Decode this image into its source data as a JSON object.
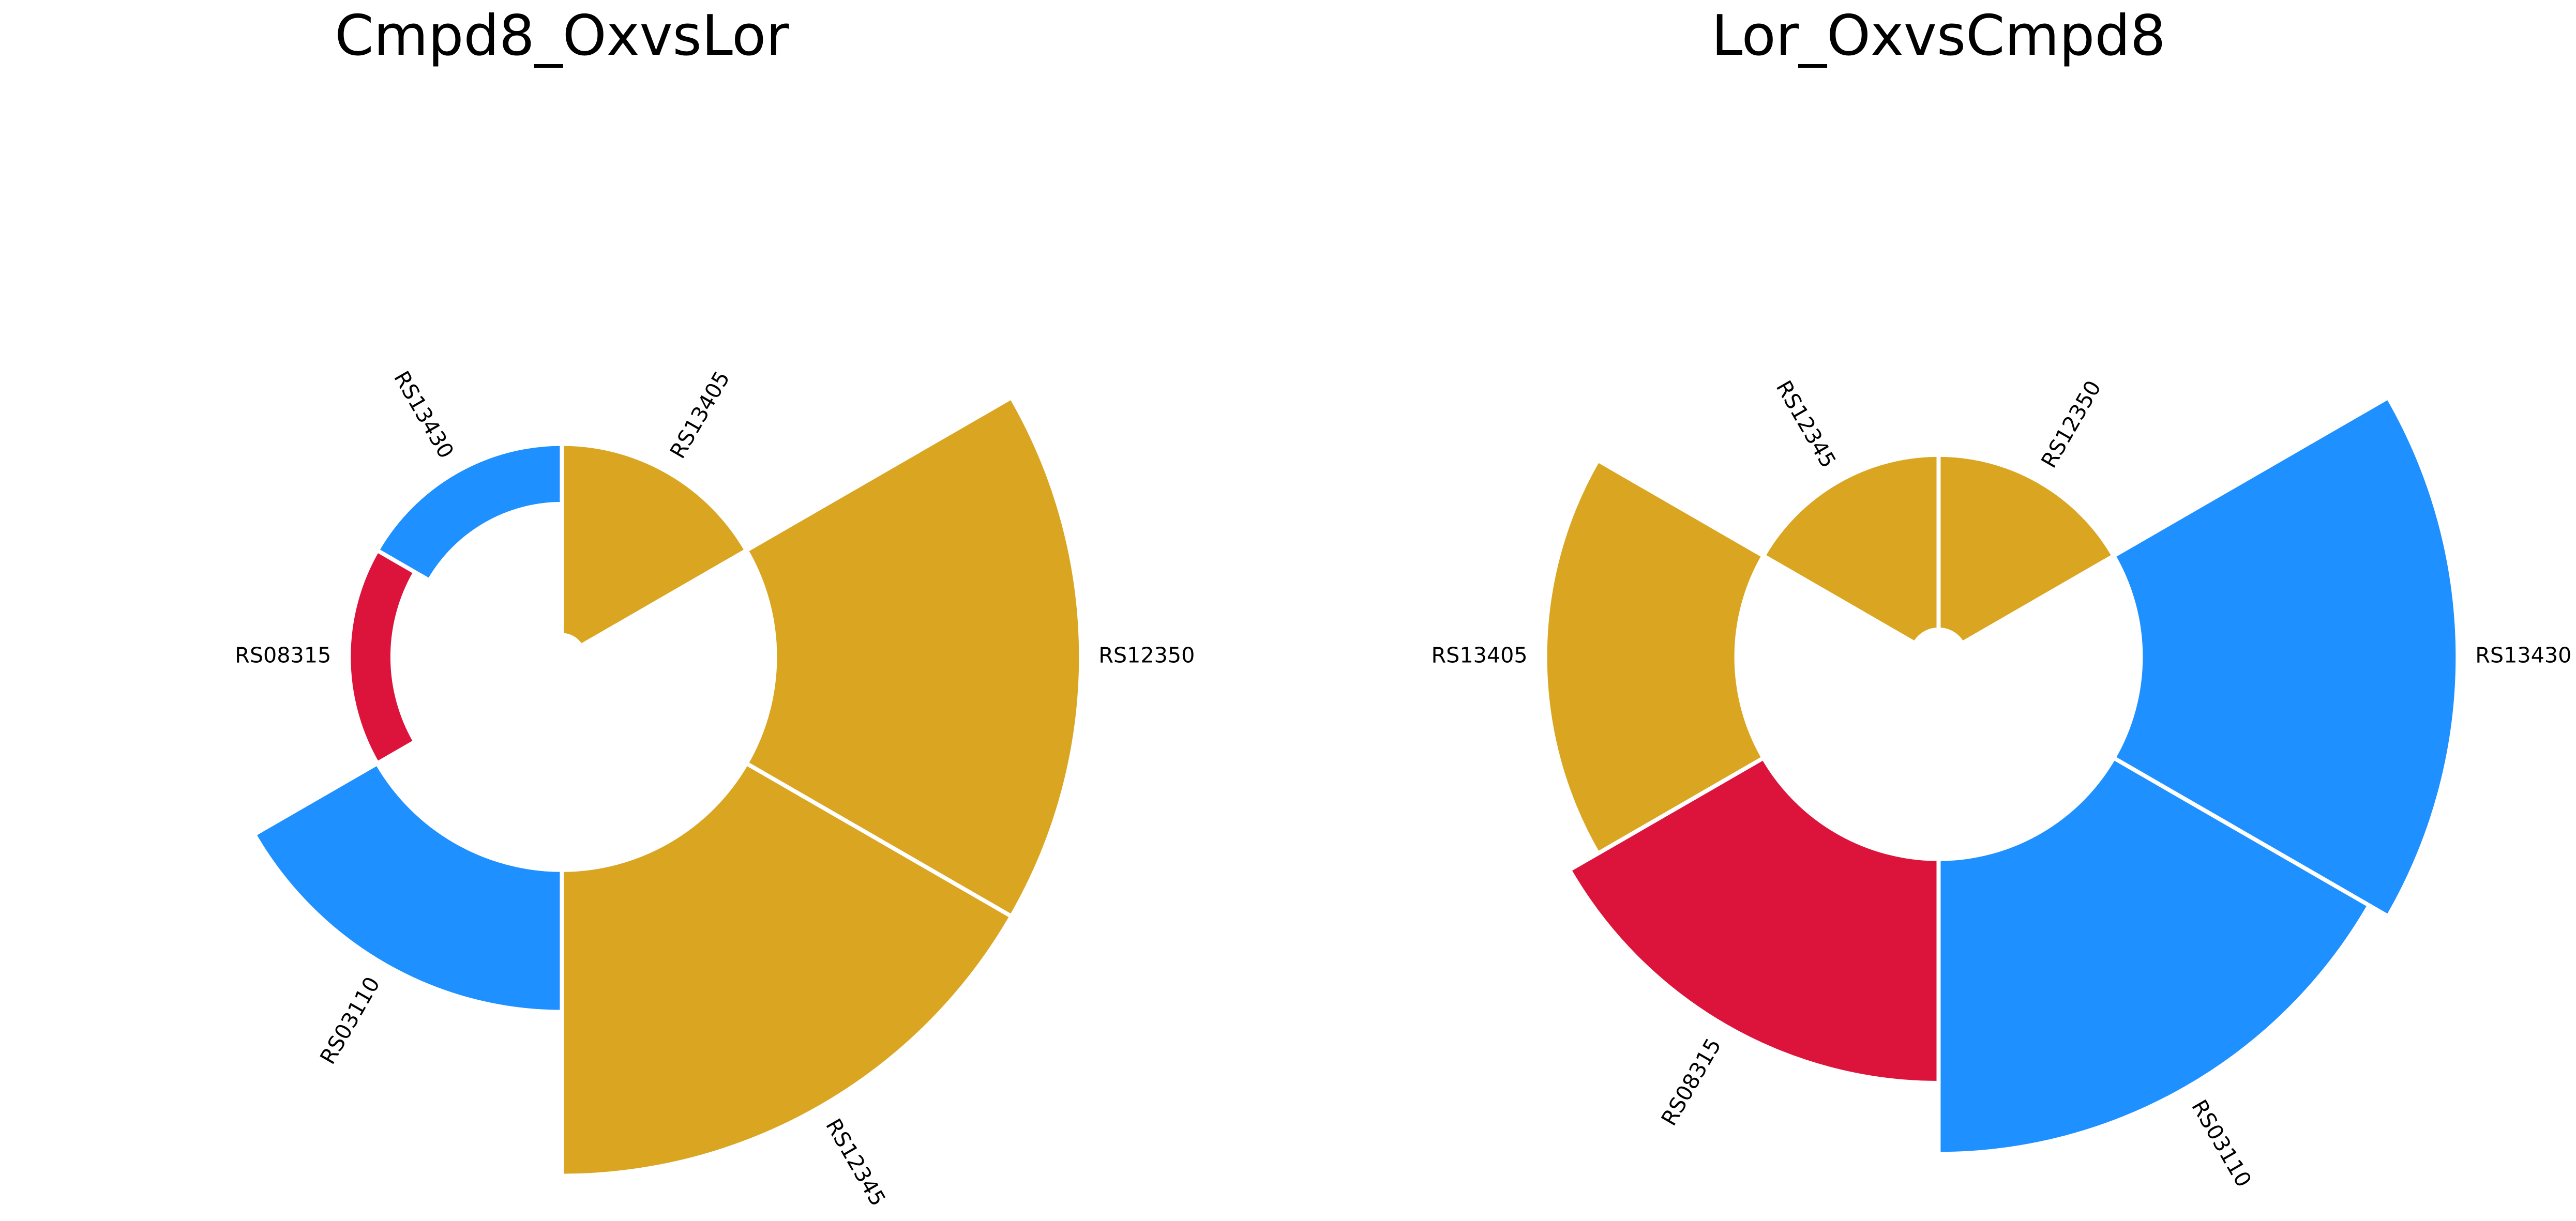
{
  "chart_data": [
    {
      "type": "polar",
      "title": "Cmpd8_OxvsLor",
      "categories": [
        "RS13405",
        "RS12350",
        "RS12345",
        "RS03110",
        "RS08315",
        "RS13430"
      ],
      "values": [
        -3.5,
        5.6,
        5.6,
        2.6,
        -0.8,
        -1.1
      ],
      "colors": [
        "#DAA520",
        "#DAA520",
        "#DAA520",
        "#1E90FF",
        "#DC143C",
        "#1E90FF"
      ],
      "ylim": [
        -3.9,
        5.6
      ]
    },
    {
      "type": "polar",
      "title": "Lor_OxvsCmpd8",
      "categories": [
        "RS12350",
        "RS13430",
        "RS03110",
        "RS08315",
        "RS13405",
        "RS12345"
      ],
      "values": [
        -3.2,
        5.8,
        5.4,
        4.1,
        3.5,
        -3.2
      ],
      "colors": [
        "#DAA520",
        "#1E90FF",
        "#1E90FF",
        "#DC143C",
        "#DAA520",
        "#DAA520"
      ],
      "ylim": [
        -3.7,
        5.8
      ]
    }
  ]
}
